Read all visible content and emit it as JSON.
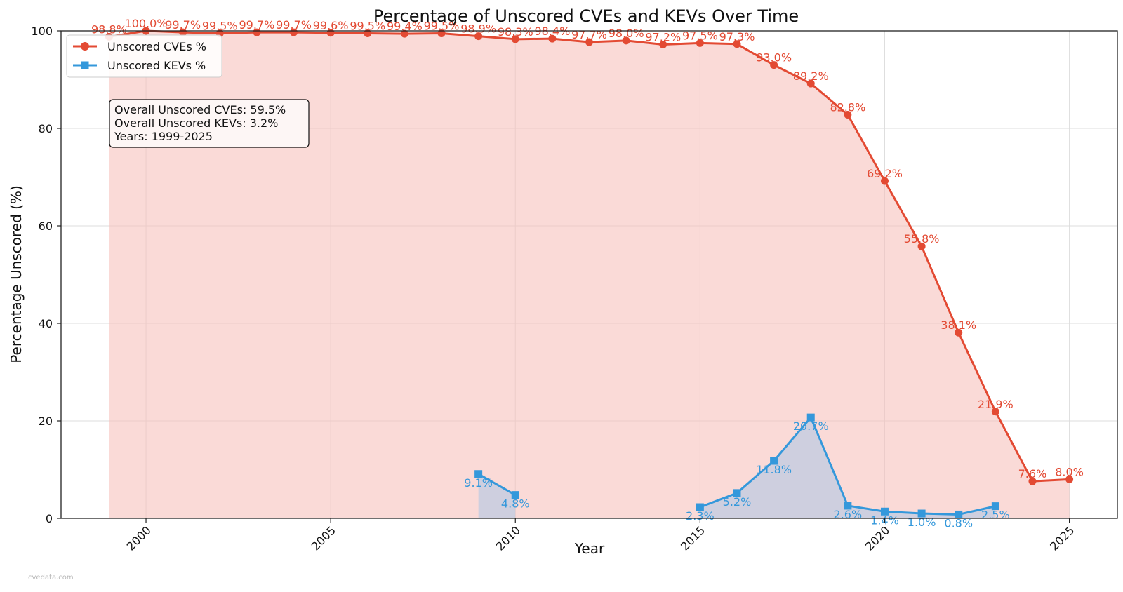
{
  "chart_data": {
    "type": "line",
    "title": "Percentage of Unscored CVEs and KEVs Over Time",
    "xlabel": "Year",
    "ylabel": "Percentage Unscored (%)",
    "xlim": [
      1997.7,
      2026.3
    ],
    "ylim": [
      0,
      100
    ],
    "x_ticks": [
      2000,
      2005,
      2010,
      2015,
      2020,
      2025
    ],
    "y_ticks": [
      0,
      20,
      40,
      60,
      80,
      100
    ],
    "grid": true,
    "legend_position": "top-left",
    "series": [
      {
        "name": "Unscored CVEs %",
        "color": "#e34a33",
        "fill": "#f6c2bd",
        "marker": "circle",
        "x": [
          1999,
          2000,
          2001,
          2002,
          2003,
          2004,
          2005,
          2006,
          2007,
          2008,
          2009,
          2010,
          2011,
          2012,
          2013,
          2014,
          2015,
          2016,
          2017,
          2018,
          2019,
          2020,
          2021,
          2022,
          2023,
          2024,
          2025
        ],
        "values": [
          98.8,
          100.0,
          99.7,
          99.5,
          99.7,
          99.7,
          99.6,
          99.5,
          99.4,
          99.5,
          98.9,
          98.3,
          98.4,
          97.7,
          98.0,
          97.2,
          97.5,
          97.3,
          93.0,
          89.2,
          82.8,
          69.2,
          55.8,
          38.1,
          21.9,
          7.6,
          8.0
        ],
        "labels": [
          "98.8%",
          "100.0%",
          "99.7%",
          "99.5%",
          "99.7%",
          "99.7%",
          "99.6%",
          "99.5%",
          "99.4%",
          "99.5%",
          "98.9%",
          "98.3%",
          "98.4%",
          "97.7%",
          "98.0%",
          "97.2%",
          "97.5%",
          "97.3%",
          "93.0%",
          "89.2%",
          "82.8%",
          "69.2%",
          "55.8%",
          "38.1%",
          "21.9%",
          "7.6%",
          "8.0%"
        ]
      },
      {
        "name": "Unscored KEVs %",
        "color": "#3498db",
        "fill": "#a9c6e6",
        "marker": "square",
        "x": [
          2009,
          2010,
          2015,
          2016,
          2017,
          2018,
          2019,
          2020,
          2021,
          2022,
          2023
        ],
        "values": [
          9.1,
          4.8,
          2.3,
          5.2,
          11.8,
          20.7,
          2.6,
          1.4,
          1.0,
          0.8,
          2.5
        ],
        "labels": [
          "9.1%",
          "4.8%",
          "2.3%",
          "5.2%",
          "11.8%",
          "20.7%",
          "2.6%",
          "1.4%",
          "1.0%",
          "0.8%",
          "2.5%"
        ],
        "segments": [
          [
            2009,
            2010
          ],
          [
            2015,
            2023
          ]
        ]
      }
    ],
    "annotation_box": [
      "Overall Unscored CVEs: 59.5%",
      "Overall Unscored KEVs: 3.2%",
      "Years: 1999-2025"
    ]
  },
  "watermark": "cvedata.com"
}
